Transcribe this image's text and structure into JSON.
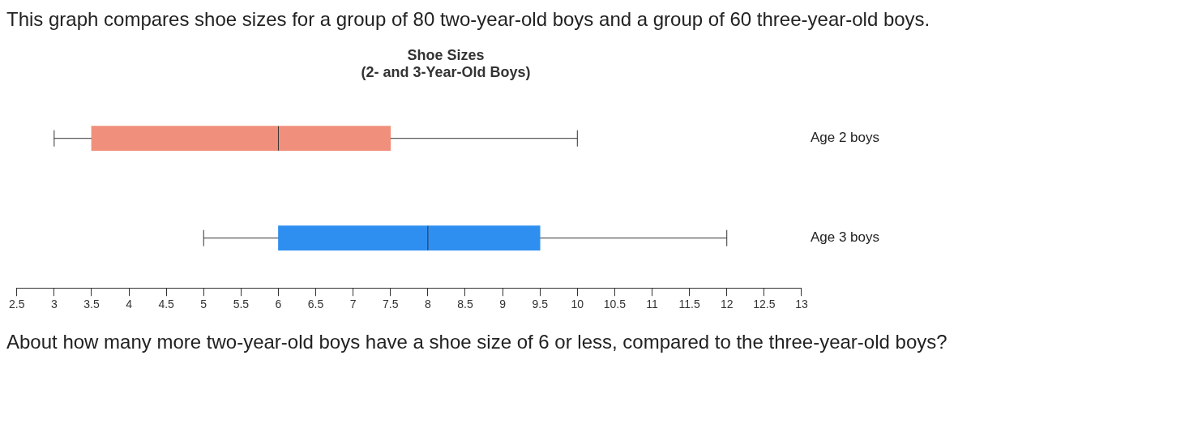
{
  "chart_data": {
    "type": "box",
    "orientation": "horizontal",
    "title": "Shoe Sizes\n(2- and 3-Year-Old Boys)",
    "categories": [
      "Age 2 boys",
      "Age 3 boys"
    ],
    "boxes": [
      {
        "low": 3,
        "q1": 3.5,
        "median": 6,
        "q3": 7.5,
        "high": 10
      },
      {
        "low": 5,
        "q1": 6,
        "median": 8,
        "q3": 9.5,
        "high": 12
      }
    ],
    "colors": [
      "#f0907c",
      "#2f8ff0"
    ],
    "xlim": [
      2.5,
      13
    ],
    "xticks": [
      2.5,
      3,
      3.5,
      4,
      4.5,
      5,
      5.5,
      6,
      6.5,
      7,
      7.5,
      8,
      8.5,
      9,
      9.5,
      10,
      10.5,
      11,
      11.5,
      12,
      12.5,
      13
    ],
    "grid": false,
    "legend": false,
    "annotations": [
      "This graph compares shoe sizes for a group of 80 two-year-old boys and a group of 60 three-year-old boys.",
      "About how many more two-year-old boys have a shoe size of 6 or less, compared to the three-year-old boys?"
    ]
  }
}
